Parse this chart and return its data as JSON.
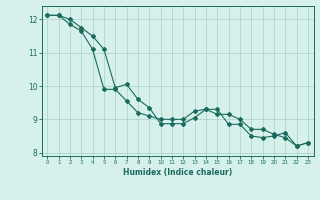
{
  "line1_x": [
    0,
    1,
    2,
    3,
    4,
    5,
    6,
    7,
    8,
    9,
    10,
    11,
    12,
    13,
    14,
    15,
    16,
    17,
    18,
    19,
    20,
    21,
    22,
    23
  ],
  "line1_y": [
    12.12,
    12.12,
    12.0,
    11.75,
    11.5,
    11.1,
    9.95,
    10.05,
    9.6,
    9.35,
    8.87,
    8.87,
    8.87,
    9.05,
    9.3,
    9.3,
    8.85,
    8.85,
    8.5,
    8.45,
    8.5,
    8.6,
    8.2,
    8.3
  ],
  "line2_x": [
    0,
    1,
    2,
    3,
    4,
    5,
    6,
    7,
    8,
    9,
    10,
    11,
    12,
    13,
    14,
    15,
    16,
    17,
    18,
    19,
    20,
    21,
    22,
    23
  ],
  "line2_y": [
    12.12,
    12.12,
    11.85,
    11.65,
    11.1,
    9.9,
    9.9,
    9.55,
    9.2,
    9.1,
    9.0,
    9.0,
    9.0,
    9.25,
    9.3,
    9.15,
    9.15,
    9.0,
    8.7,
    8.7,
    8.55,
    8.45,
    8.2,
    8.3
  ],
  "line_color": "#1a6b5e",
  "bg_color": "#d6f0eb",
  "grid_color": "#aacfc8",
  "xlabel": "Humidex (Indice chaleur)",
  "xlim": [
    -0.5,
    23.5
  ],
  "ylim": [
    7.9,
    12.4
  ],
  "yticks": [
    8,
    9,
    10,
    11,
    12
  ],
  "xticks": [
    0,
    1,
    2,
    3,
    4,
    5,
    6,
    7,
    8,
    9,
    10,
    11,
    12,
    13,
    14,
    15,
    16,
    17,
    18,
    19,
    20,
    21,
    22,
    23
  ]
}
